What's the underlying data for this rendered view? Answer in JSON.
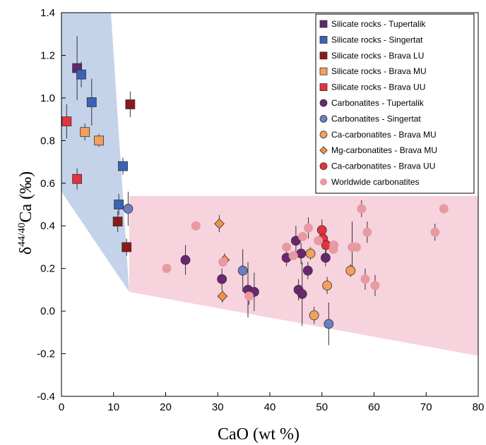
{
  "chart_data": {
    "type": "scatter",
    "xlabel": "CaO (wt %)",
    "ylabel_main": "δ",
    "ylabel_sup": "44/40",
    "ylabel_rest": "Ca (‰)",
    "xlim": [
      0,
      80
    ],
    "ylim": [
      -0.4,
      1.4
    ],
    "x_ticks": [
      "0",
      "10",
      "20",
      "30",
      "40",
      "50",
      "60",
      "70",
      "80"
    ],
    "y_ticks": [
      "-0.4",
      "-0.2",
      "0.0",
      "0.2",
      "0.4",
      "0.6",
      "0.8",
      "1.0",
      "1.2",
      "1.4"
    ],
    "grid": false,
    "legend_position": "top-right",
    "regions": [
      {
        "name": "silicate-field",
        "color": "#c5d3ea",
        "polygon": [
          [
            0,
            0.56
          ],
          [
            0,
            1.4
          ],
          [
            9.5,
            1.4
          ],
          [
            13,
            0.09
          ]
        ]
      },
      {
        "name": "carbonatite-field",
        "color": "#f7d3dd",
        "polygon": [
          [
            13,
            0.54
          ],
          [
            80,
            0.54
          ],
          [
            80,
            -0.21
          ],
          [
            13,
            0.09
          ]
        ]
      }
    ],
    "series": [
      {
        "name": "Silicate rocks - Tupertalik",
        "marker": "square",
        "color": "#5b2a6b",
        "points": [
          {
            "x": 3.0,
            "y": 1.14,
            "err": 0.15
          }
        ]
      },
      {
        "name": "Silicate rocks - Singertat",
        "marker": "square",
        "color": "#3a63b8",
        "points": [
          {
            "x": 3.8,
            "y": 1.11,
            "err": 0.06
          },
          {
            "x": 5.8,
            "y": 0.98,
            "err": 0.11
          },
          {
            "x": 11.8,
            "y": 0.68,
            "err": 0.04
          },
          {
            "x": 11.0,
            "y": 0.5,
            "err": 0.05
          }
        ]
      },
      {
        "name": "Silicate rocks - Brava LU",
        "marker": "square",
        "color": "#8b1a1a",
        "points": [
          {
            "x": 13.2,
            "y": 0.97,
            "err": 0.06
          },
          {
            "x": 10.8,
            "y": 0.42,
            "err": 0.05
          },
          {
            "x": 12.5,
            "y": 0.3,
            "err": 0.04
          }
        ]
      },
      {
        "name": "Silicate rocks - Brava MU",
        "marker": "square",
        "color": "#f2a05e",
        "points": [
          {
            "x": 4.5,
            "y": 0.84,
            "err": 0.04
          },
          {
            "x": 7.2,
            "y": 0.8,
            "err": 0.03
          }
        ]
      },
      {
        "name": "Silicate rocks - Brava UU",
        "marker": "square",
        "color": "#e5323c",
        "points": [
          {
            "x": 1.0,
            "y": 0.89,
            "err": 0.08
          },
          {
            "x": 3.0,
            "y": 0.62,
            "err": 0.05
          }
        ]
      },
      {
        "name": "Carbonatites - Tupertalik",
        "marker": "circle",
        "color": "#6b2670",
        "points": [
          {
            "x": 23.8,
            "y": 0.24,
            "err": 0.07
          },
          {
            "x": 30.8,
            "y": 0.15,
            "err": 0.05
          },
          {
            "x": 35.8,
            "y": 0.1,
            "err": 0.13
          },
          {
            "x": 37.0,
            "y": 0.09,
            "err": 0.09
          },
          {
            "x": 43.2,
            "y": 0.25,
            "err": 0.04
          },
          {
            "x": 45.0,
            "y": 0.33,
            "err": 0.07
          },
          {
            "x": 45.5,
            "y": 0.1,
            "err": 0.05
          },
          {
            "x": 46.0,
            "y": 0.27,
            "err": 0.05
          },
          {
            "x": 46.2,
            "y": 0.08,
            "err": 0.15
          },
          {
            "x": 47.3,
            "y": 0.19,
            "err": 0.04
          },
          {
            "x": 50.7,
            "y": 0.25,
            "err": 0.04
          }
        ]
      },
      {
        "name": "Carbonatites - Singertat",
        "marker": "circle",
        "color": "#6a7ec0",
        "points": [
          {
            "x": 12.8,
            "y": 0.48,
            "err": 0.08
          },
          {
            "x": 34.8,
            "y": 0.19,
            "err": 0.1
          },
          {
            "x": 51.3,
            "y": -0.06,
            "err": 0.1
          }
        ]
      },
      {
        "name": "Ca-carbonatites - Brava MU",
        "marker": "circle",
        "color": "#f2a05e",
        "points": [
          {
            "x": 47.8,
            "y": 0.27,
            "err": 0.03
          },
          {
            "x": 48.5,
            "y": -0.02,
            "err": 0.04
          },
          {
            "x": 51.0,
            "y": 0.12,
            "err": 0.04
          },
          {
            "x": 55.5,
            "y": 0.19,
            "err": 0.03
          }
        ]
      },
      {
        "name": "Mg-carbonatites - Brava MU",
        "marker": "diamond",
        "color": "#f29048",
        "points": [
          {
            "x": 30.3,
            "y": 0.41,
            "err": 0.04
          },
          {
            "x": 31.3,
            "y": 0.24,
            "err": 0.03
          },
          {
            "x": 30.9,
            "y": 0.07,
            "err": 0.03
          }
        ]
      },
      {
        "name": "Ca-carbonatites - Brava UU",
        "marker": "circle",
        "color": "#e5323c",
        "points": [
          {
            "x": 50.0,
            "y": 0.38,
            "err": 0.05
          },
          {
            "x": 50.2,
            "y": 0.34,
            "err": 0.05
          },
          {
            "x": 50.8,
            "y": 0.31,
            "err": 0.04
          }
        ]
      },
      {
        "name": "Worldwide carbonatites",
        "marker": "circle",
        "color": "#e79aa2",
        "points": [
          {
            "x": 20.2,
            "y": 0.2,
            "err": 0
          },
          {
            "x": 25.8,
            "y": 0.4,
            "err": 0
          },
          {
            "x": 31.0,
            "y": 0.23,
            "err": 0
          },
          {
            "x": 36.0,
            "y": 0.07,
            "err": 0.04
          },
          {
            "x": 43.2,
            "y": 0.3,
            "err": 0
          },
          {
            "x": 44.5,
            "y": 0.26,
            "err": 0
          },
          {
            "x": 46.3,
            "y": 0.35,
            "err": 0
          },
          {
            "x": 47.4,
            "y": 0.39,
            "err": 0.05
          },
          {
            "x": 49.3,
            "y": 0.33,
            "err": 0
          },
          {
            "x": 52.3,
            "y": 0.31,
            "err": 0
          },
          {
            "x": 52.2,
            "y": 0.29,
            "err": 0
          },
          {
            "x": 55.8,
            "y": 0.3,
            "err": 0.12
          },
          {
            "x": 56.6,
            "y": 0.3,
            "err": 0
          },
          {
            "x": 57.6,
            "y": 0.48,
            "err": 0.04
          },
          {
            "x": 58.3,
            "y": 0.15,
            "err": 0.05
          },
          {
            "x": 58.7,
            "y": 0.37,
            "err": 0.05
          },
          {
            "x": 60.2,
            "y": 0.12,
            "err": 0.05
          },
          {
            "x": 71.7,
            "y": 0.37,
            "err": 0.04
          },
          {
            "x": 73.4,
            "y": 0.48,
            "err": 0
          }
        ]
      }
    ]
  }
}
